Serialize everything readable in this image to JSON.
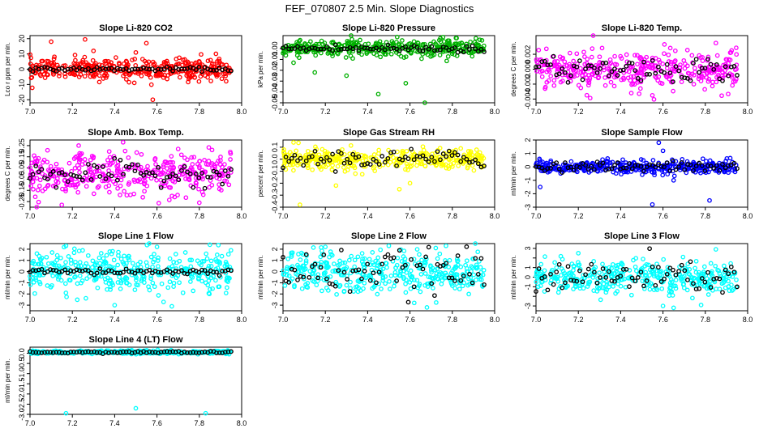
{
  "figure_title": "FEF_070807  2.5 Min. Slope Diagnostics",
  "chart_data": [
    {
      "type": "scatter",
      "title": "Slope Li-820 CO2",
      "ylabel": "Lco r ppm per min.",
      "xlabel": "",
      "xlim": [
        7.0,
        8.0
      ],
      "ylim": [
        -22,
        22
      ],
      "xticks": [
        7.0,
        7.2,
        7.4,
        7.6,
        7.8,
        8.0
      ],
      "xtick_labels": [
        "7.0",
        "7.2",
        "7.4",
        "7.6",
        "7.8",
        "8.0"
      ],
      "yticks": [
        -20,
        -10,
        0,
        10,
        20
      ],
      "ytick_labels": [
        "-20",
        "-10",
        "0",
        "10",
        "20"
      ],
      "color": "#ff0000",
      "x_range": [
        7.0,
        7.95
      ],
      "spread": 3.5,
      "center": 0,
      "black_spread": 0.6,
      "outliers": [
        [
          7.1,
          18
        ],
        [
          7.26,
          19.5
        ],
        [
          7.55,
          17
        ],
        [
          7.58,
          -20
        ],
        [
          7.3,
          12
        ],
        [
          7.5,
          11
        ]
      ]
    },
    {
      "type": "scatter",
      "title": "Slope Li-820 Pressure",
      "ylabel": "kPa per min.",
      "xlabel": "",
      "xlim": [
        7.0,
        8.0
      ],
      "ylim": [
        -0.05,
        0.012
      ],
      "xticks": [
        7.0,
        7.2,
        7.4,
        7.6,
        7.8,
        8.0
      ],
      "xtick_labels": [
        "7.0",
        "7.2",
        "7.4",
        "7.6",
        "7.8",
        "8.0"
      ],
      "yticks": [
        -0.05,
        -0.04,
        -0.03,
        -0.02,
        -0.01,
        0.0
      ],
      "ytick_labels": [
        "-0.05",
        "-0.04",
        "-0.03",
        "-0.02",
        "-0.01",
        "0.00"
      ],
      "color": "#00b000",
      "x_range": [
        7.0,
        7.95
      ],
      "spread": 0.004,
      "center": 0.0,
      "black_spread": 0.002,
      "outliers": [
        [
          7.45,
          -0.042
        ],
        [
          7.58,
          -0.032
        ],
        [
          7.67,
          -0.05
        ],
        [
          7.15,
          -0.022
        ],
        [
          7.3,
          -0.025
        ],
        [
          7.05,
          -0.013
        ]
      ]
    },
    {
      "type": "scatter",
      "title": "Slope Li-820 Temp.",
      "ylabel": "degrees C per min.",
      "xlabel": "",
      "xlim": [
        7.0,
        8.0
      ],
      "ylim": [
        -0.0045,
        0.0045
      ],
      "xticks": [
        7.0,
        7.2,
        7.4,
        7.6,
        7.8,
        8.0
      ],
      "xtick_labels": [
        "7.0",
        "7.2",
        "7.4",
        "7.6",
        "7.8",
        "8.0"
      ],
      "yticks": [
        -0.004,
        -0.002,
        0.0,
        0.002
      ],
      "ytick_labels": [
        "-0.004",
        "-0.002",
        "0.000",
        "0.002"
      ],
      "color": "#ff00ff",
      "x_range": [
        7.0,
        7.95
      ],
      "spread": 0.0012,
      "center": 0.0,
      "black_spread": 0.0008,
      "outliers": [
        [
          7.27,
          0.0045
        ],
        [
          7.45,
          -0.0032
        ],
        [
          7.55,
          -0.0035
        ],
        [
          7.85,
          0.0035
        ]
      ]
    },
    {
      "type": "scatter",
      "title": "Slope Amb. Box Temp.",
      "ylabel": "degrees C per min.",
      "xlabel": "",
      "xlim": [
        7.0,
        8.0
      ],
      "ylim": [
        -0.3,
        0.3
      ],
      "xticks": [
        7.0,
        7.2,
        7.4,
        7.6,
        7.8,
        8.0
      ],
      "xtick_labels": [
        "7.0",
        "7.2",
        "7.4",
        "7.6",
        "7.8",
        "8.0"
      ],
      "yticks": [
        -0.25,
        -0.15,
        -0.05,
        0.05,
        0.15,
        0.25
      ],
      "ytick_labels": [
        "-0.25",
        "-0.15",
        "-0.05",
        "0.05",
        "0.15",
        "0.25"
      ],
      "color": "#ff00ff",
      "x_range": [
        7.0,
        7.95
      ],
      "spread": 0.09,
      "center": 0.0,
      "black_spread": 0.05,
      "outliers": [
        [
          7.23,
          0.25
        ],
        [
          7.44,
          0.28
        ],
        [
          7.7,
          0.22
        ],
        [
          7.15,
          -0.28
        ],
        [
          7.8,
          -0.26
        ]
      ]
    },
    {
      "type": "scatter",
      "title": "Slope Gas Stream RH",
      "ylabel": "percent per min.",
      "xlabel": "",
      "xlim": [
        7.0,
        8.0
      ],
      "ylim": [
        -0.4,
        0.16
      ],
      "xticks": [
        7.0,
        7.2,
        7.4,
        7.6,
        7.8,
        8.0
      ],
      "xtick_labels": [
        "7.0",
        "7.2",
        "7.4",
        "7.6",
        "7.8",
        "8.0"
      ],
      "yticks": [
        -0.4,
        -0.3,
        -0.2,
        -0.1,
        0.0,
        0.1
      ],
      "ytick_labels": [
        "-0.4",
        "-0.3",
        "-0.2",
        "-0.1",
        "0.0",
        "0.1"
      ],
      "color": "#ffff00",
      "x_range": [
        7.0,
        7.95
      ],
      "spread": 0.04,
      "center": 0.0,
      "black_spread": 0.04,
      "outliers": [
        [
          7.08,
          -0.38
        ],
        [
          7.55,
          -0.25
        ],
        [
          7.25,
          -0.22
        ],
        [
          7.05,
          0.14
        ],
        [
          7.6,
          -0.2
        ]
      ]
    },
    {
      "type": "scatter",
      "title": "Slope Sample Flow",
      "ylabel": "ml/min per min.",
      "xlabel": "",
      "xlim": [
        7.0,
        8.0
      ],
      "ylim": [
        -3.0,
        2.0
      ],
      "xticks": [
        7.0,
        7.2,
        7.4,
        7.6,
        7.8,
        8.0
      ],
      "xtick_labels": [
        "7.0",
        "7.2",
        "7.4",
        "7.6",
        "7.8",
        "8.0"
      ],
      "yticks": [
        -3,
        -2,
        -1,
        0,
        1,
        2
      ],
      "ytick_labels": [
        "-3",
        "-2",
        "-1",
        "0",
        "1",
        "2"
      ],
      "color": "#0000ff",
      "x_range": [
        7.0,
        7.95
      ],
      "spread": 0.25,
      "center": 0.0,
      "black_spread": 0.2,
      "outliers": [
        [
          7.58,
          1.8
        ],
        [
          7.55,
          -2.8
        ],
        [
          7.02,
          -1.5
        ],
        [
          7.82,
          -2.5
        ],
        [
          7.6,
          1.2
        ],
        [
          7.65,
          -1.0
        ]
      ]
    },
    {
      "type": "scatter",
      "title": "Slope Line 1 Flow",
      "ylabel": "ml/min per min.",
      "xlabel": "",
      "xlim": [
        7.0,
        8.0
      ],
      "ylim": [
        -3.5,
        2.5
      ],
      "xticks": [
        7.0,
        7.2,
        7.4,
        7.6,
        7.8,
        8.0
      ],
      "xtick_labels": [
        "7.0",
        "7.2",
        "7.4",
        "7.6",
        "7.8",
        "8.0"
      ],
      "yticks": [
        -3,
        -2,
        -1,
        0,
        1,
        2
      ],
      "ytick_labels": [
        "-3",
        "-2",
        "-1",
        "0",
        "1",
        "2"
      ],
      "color": "#00ffff",
      "x_range": [
        7.0,
        7.95
      ],
      "spread": 0.9,
      "center": 0.0,
      "black_spread": 0.15,
      "outliers": [
        [
          7.17,
          2.3
        ],
        [
          7.4,
          -3.0
        ],
        [
          7.67,
          -3.1
        ],
        [
          7.85,
          2.4
        ],
        [
          7.6,
          2.2
        ]
      ]
    },
    {
      "type": "scatter",
      "title": "Slope Line 2 Flow",
      "ylabel": "ml/min per min.",
      "xlabel": "",
      "xlim": [
        7.0,
        8.0
      ],
      "ylim": [
        -3.5,
        2.5
      ],
      "xticks": [
        7.0,
        7.2,
        7.4,
        7.6,
        7.8,
        8.0
      ],
      "xtick_labels": [
        "7.0",
        "7.2",
        "7.4",
        "7.6",
        "7.8",
        "8.0"
      ],
      "yticks": [
        -3,
        -2,
        -1,
        0,
        1,
        2
      ],
      "ytick_labels": [
        "-3",
        "-2",
        "-1",
        "0",
        "1",
        "2"
      ],
      "color": "#00ffff",
      "x_range": [
        7.0,
        7.95
      ],
      "spread": 0.9,
      "center": 0.0,
      "black_spread": 0.9,
      "outliers": [
        [
          7.2,
          2.2
        ],
        [
          7.5,
          2.3
        ],
        [
          7.68,
          -3.2
        ],
        [
          7.77,
          2.3
        ],
        [
          7.62,
          -2.8
        ]
      ]
    },
    {
      "type": "scatter",
      "title": "Slope Line 3 Flow",
      "ylabel": "ml/min per min.",
      "xlabel": "",
      "xlim": [
        7.0,
        8.0
      ],
      "ylim": [
        -3.5,
        3.5
      ],
      "xticks": [
        7.0,
        7.2,
        7.4,
        7.6,
        7.8,
        8.0
      ],
      "xtick_labels": [
        "7.0",
        "7.2",
        "7.4",
        "7.6",
        "7.8",
        "8.0"
      ],
      "yticks": [
        -3,
        -2,
        -1,
        0,
        1,
        2,
        3
      ],
      "ytick_labels": [
        "-3",
        "",
        "-1",
        "0",
        "1",
        "",
        "3"
      ],
      "color": "#00ffff",
      "x_range": [
        7.0,
        7.95
      ],
      "spread": 0.8,
      "center": 0.0,
      "black_spread": 0.9,
      "outliers": [
        [
          7.6,
          -3.0
        ],
        [
          7.65,
          -3.2
        ],
        [
          7.78,
          -2.9
        ],
        [
          7.85,
          2.9
        ],
        [
          7.2,
          2.5
        ]
      ]
    },
    {
      "type": "scatter",
      "title": "Slope Line 4 (LT) Flow",
      "ylabel": "ml/min per min.",
      "xlabel": "",
      "xlim": [
        7.0,
        8.0
      ],
      "ylim": [
        -3.0,
        0.3
      ],
      "xticks": [
        7.0,
        7.2,
        7.4,
        7.6,
        7.8,
        8.0
      ],
      "xtick_labels": [
        "7.0",
        "7.2",
        "7.4",
        "7.6",
        "7.8",
        "8.0"
      ],
      "yticks": [
        -3.0,
        -2.5,
        -2.0,
        -1.5,
        -1.0,
        -0.5,
        0.0
      ],
      "ytick_labels": [
        "-3.0",
        "-2.5",
        "-2.0",
        "-1.5",
        "-1.0",
        "-0.5",
        "0.0"
      ],
      "color": "#00ffff",
      "x_range": [
        7.0,
        7.95
      ],
      "spread": 0.04,
      "center": 0.05,
      "black_spread": 0.03,
      "outliers": [
        [
          7.17,
          -2.95
        ],
        [
          7.5,
          -2.7
        ],
        [
          7.83,
          -2.95
        ]
      ]
    }
  ]
}
